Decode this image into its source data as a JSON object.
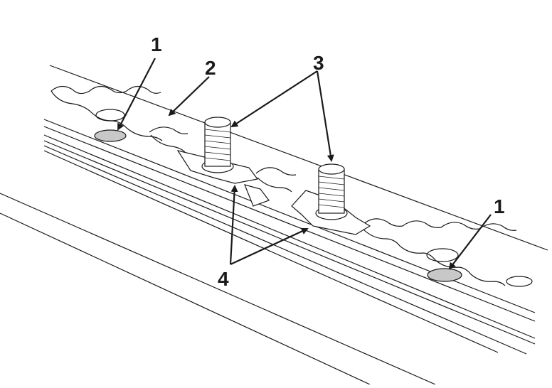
{
  "callouts": {
    "label_1_left": "1",
    "label_2": "2",
    "label_3": "3",
    "label_4": "4",
    "label_1_right": "1"
  },
  "colors": {
    "ink": "#1a1a1a",
    "hole_fill": "#c8c8c8",
    "background": "#ffffff"
  }
}
